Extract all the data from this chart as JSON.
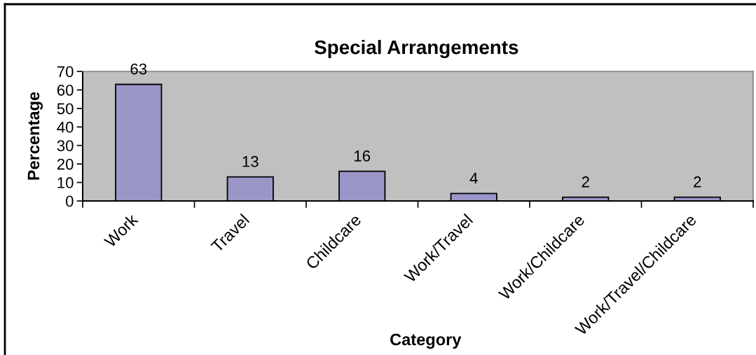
{
  "chart_data": {
    "type": "bar",
    "title": "Special Arrangements",
    "xlabel": "Category",
    "ylabel": "Percentage",
    "categories": [
      "Work",
      "Travel",
      "Childcare",
      "Work/Travel",
      "Work/Childcare",
      "Work/Travel/Childcare"
    ],
    "values": [
      63,
      13,
      16,
      4,
      2,
      2
    ],
    "color": "#9b96c8",
    "ylim": [
      0,
      70
    ],
    "yticks": [
      0,
      10,
      20,
      30,
      40,
      50,
      60,
      70
    ],
    "data_labels": true
  }
}
